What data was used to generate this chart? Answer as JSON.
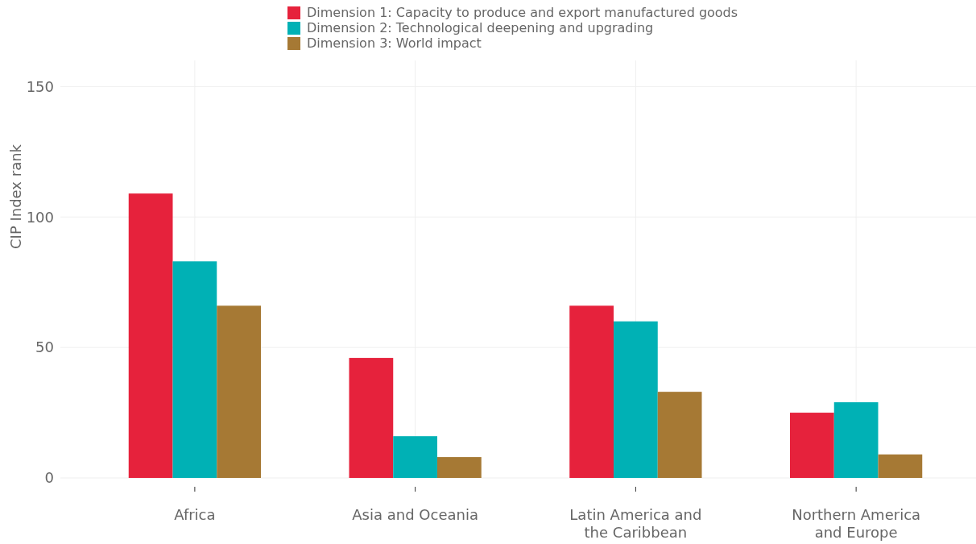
{
  "chart_data": {
    "type": "bar",
    "ylabel": "CIP Index rank",
    "categories": [
      "Africa",
      "Asia and Oceania",
      "Latin America and the Caribbean",
      "Northern America and Europe"
    ],
    "series": [
      {
        "name": "Dimension 1: Capacity to produce and export manufactured goods",
        "color": "#e6223c",
        "values": [
          109,
          46,
          66,
          25
        ]
      },
      {
        "name": "Dimension 2: Technological deepening and upgrading",
        "color": "#00b1b5",
        "values": [
          83,
          16,
          60,
          29
        ]
      },
      {
        "name": "Dimension 3: World impact",
        "color": "#a67934",
        "values": [
          66,
          8,
          33,
          9
        ]
      }
    ],
    "ylim": [
      0,
      160
    ],
    "yticks": [
      0,
      50,
      100,
      150
    ],
    "grid": true,
    "legend": "top"
  }
}
